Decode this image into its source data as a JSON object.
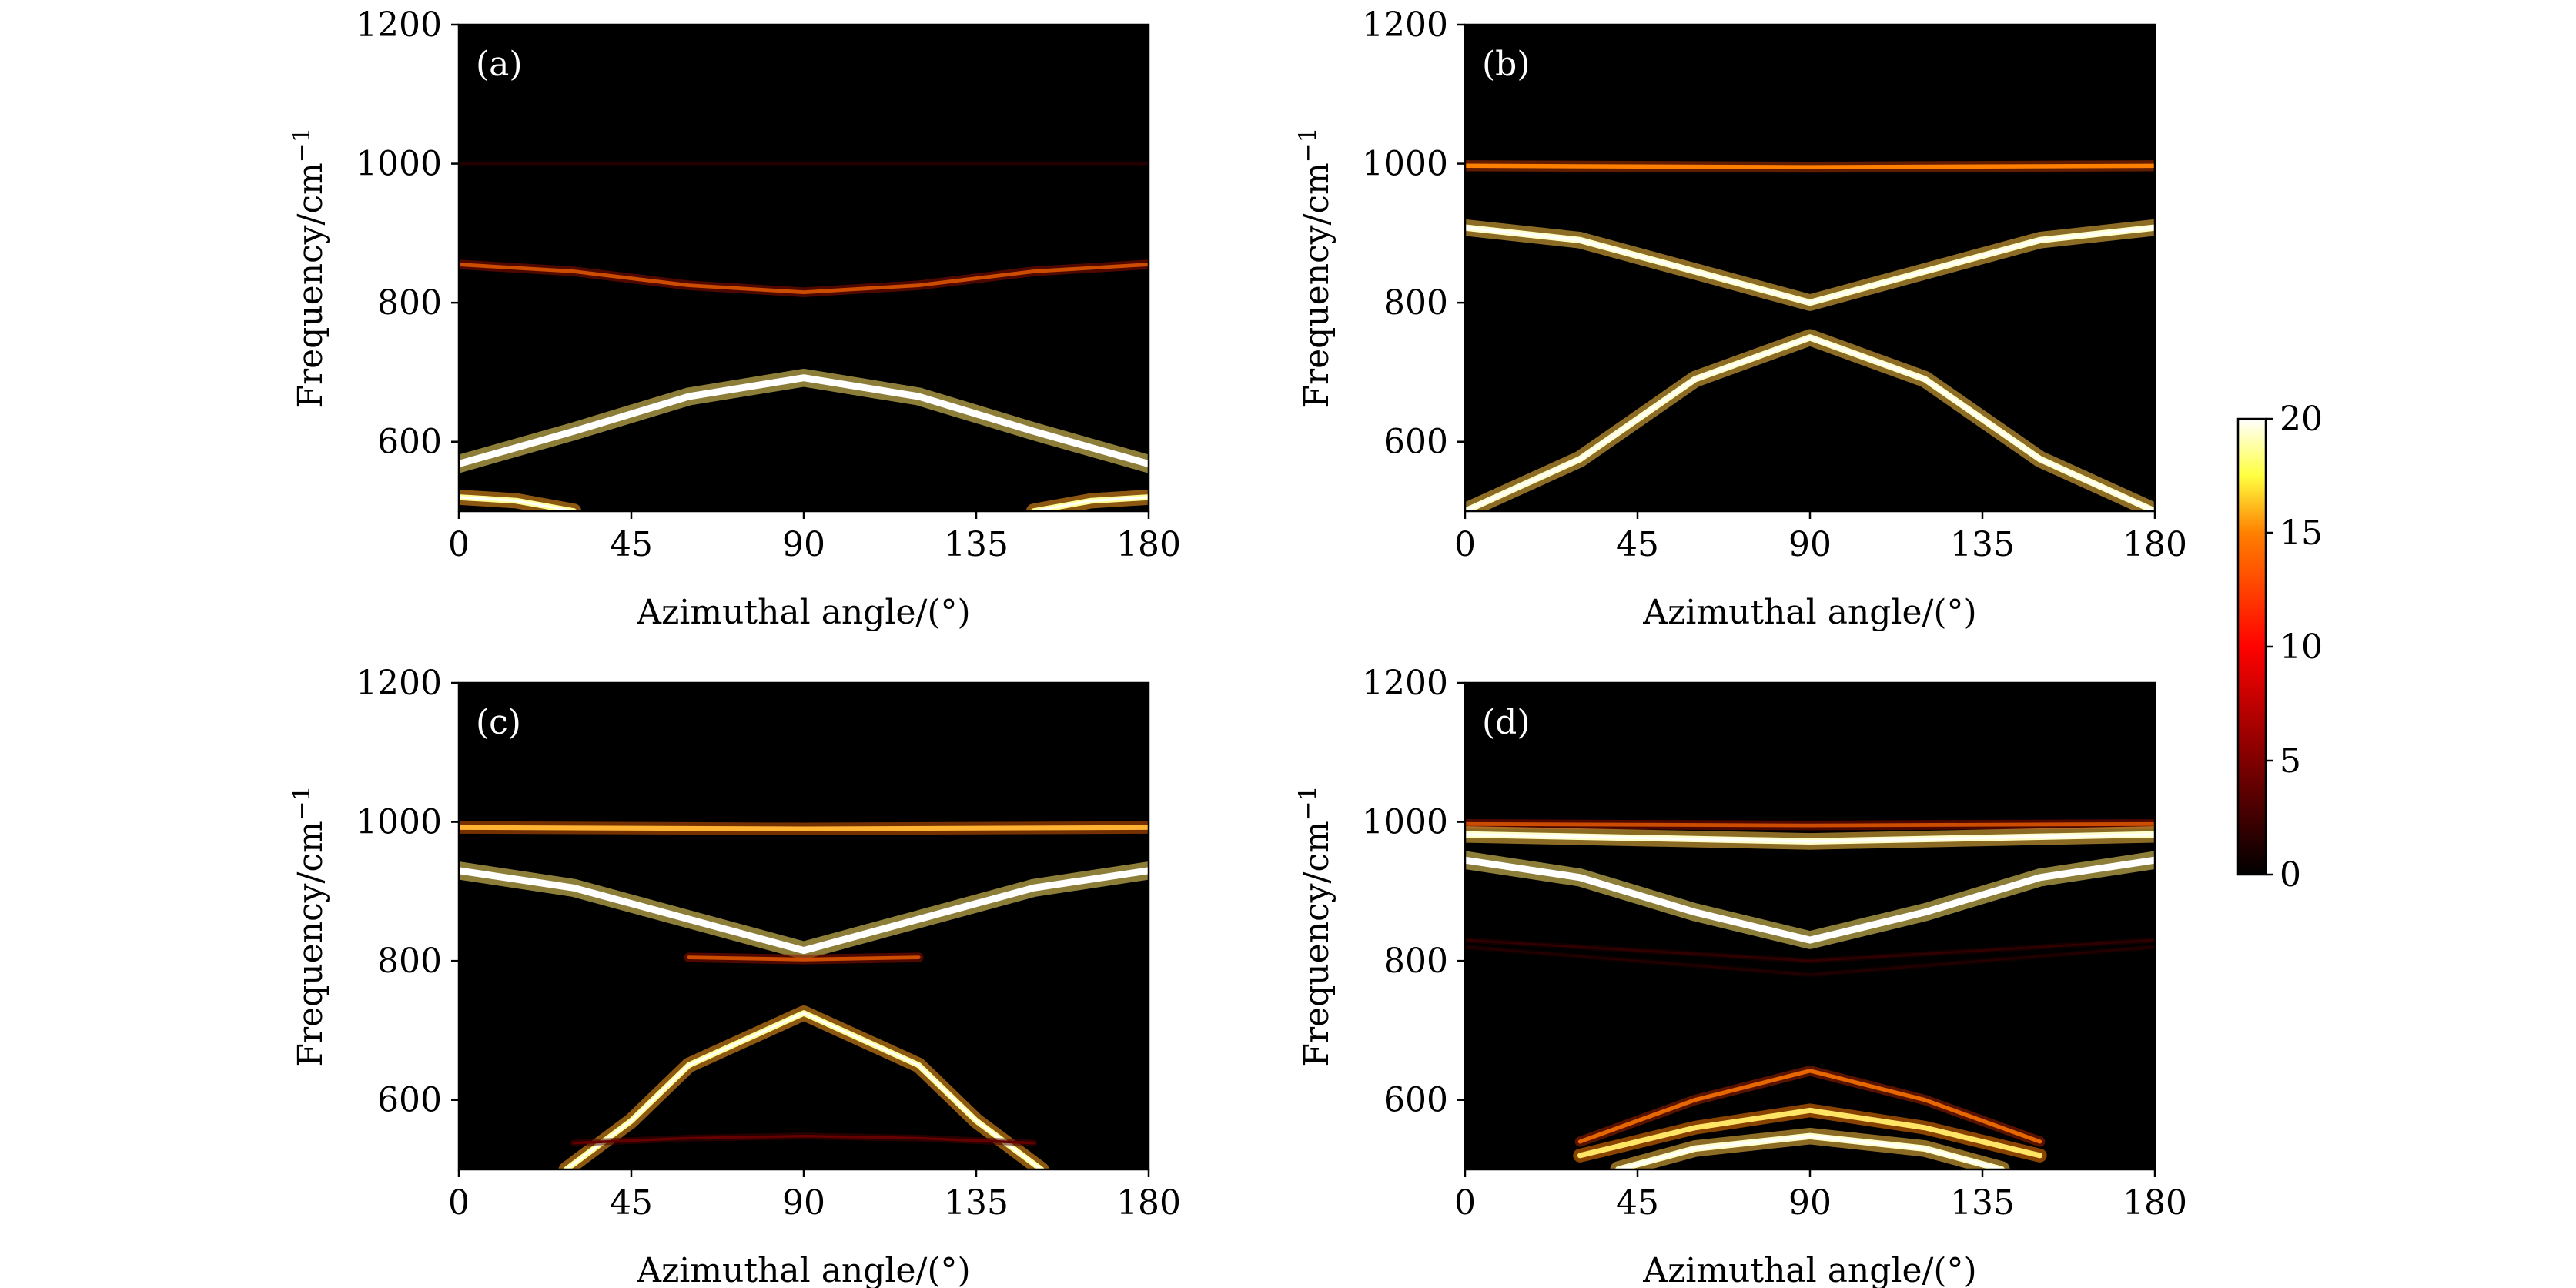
{
  "chart_data": [
    {
      "type": "heatmap",
      "panel_label": "(a)",
      "xlabel": "Azimuthal angle/(°)",
      "ylabel": "Frequency/cm",
      "ylabel_sup": "−1",
      "xlim": [
        0,
        180
      ],
      "ylim": [
        500,
        1200
      ],
      "xticks": [
        0,
        45,
        90,
        135,
        180
      ],
      "yticks": [
        600,
        800,
        1000,
        1200
      ],
      "colormap": "afmhot",
      "bands": [
        {
          "points": [
            [
              0,
              1000
            ],
            [
              90,
              1000
            ],
            [
              180,
              1000
            ]
          ],
          "intensity": 1.5
        },
        {
          "points": [
            [
              0,
              855
            ],
            [
              30,
              845
            ],
            [
              60,
              825
            ],
            [
              90,
              815
            ],
            [
              120,
              825
            ],
            [
              150,
              845
            ],
            [
              180,
              855
            ]
          ],
          "intensity": 8
        },
        {
          "points": [
            [
              0,
              568
            ],
            [
              30,
              615
            ],
            [
              60,
              665
            ],
            [
              90,
              692
            ],
            [
              120,
              665
            ],
            [
              150,
              615
            ],
            [
              180,
              568
            ]
          ],
          "intensity": 20
        },
        {
          "points": [
            [
              0,
              520
            ],
            [
              15,
              515
            ],
            [
              30,
              500
            ]
          ],
          "intensity": 16
        },
        {
          "points": [
            [
              150,
              500
            ],
            [
              165,
              515
            ],
            [
              180,
              520
            ]
          ],
          "intensity": 16
        }
      ]
    },
    {
      "type": "heatmap",
      "panel_label": "(b)",
      "xlabel": "Azimuthal angle/(°)",
      "ylabel": "Frequency/cm",
      "ylabel_sup": "−1",
      "xlim": [
        0,
        180
      ],
      "ylim": [
        500,
        1200
      ],
      "xticks": [
        0,
        45,
        90,
        135,
        180
      ],
      "yticks": [
        600,
        800,
        1000,
        1200
      ],
      "colormap": "afmhot",
      "bands": [
        {
          "points": [
            [
              0,
              997
            ],
            [
              90,
              995
            ],
            [
              180,
              997
            ]
          ],
          "intensity": 10
        },
        {
          "points": [
            [
              0,
              908
            ],
            [
              30,
              890
            ],
            [
              60,
              845
            ],
            [
              90,
              800
            ],
            [
              120,
              845
            ],
            [
              150,
              890
            ],
            [
              180,
              908
            ]
          ],
          "intensity": 18
        },
        {
          "points": [
            [
              0,
              500
            ],
            [
              30,
              575
            ],
            [
              60,
              690
            ],
            [
              90,
              750
            ],
            [
              120,
              690
            ],
            [
              150,
              575
            ],
            [
              180,
              500
            ]
          ],
          "intensity": 18
        }
      ]
    },
    {
      "type": "heatmap",
      "panel_label": "(c)",
      "xlabel": "Azimuthal angle/(°)",
      "ylabel": "Frequency/cm",
      "ylabel_sup": "−1",
      "xlim": [
        0,
        180
      ],
      "ylim": [
        500,
        1200
      ],
      "xticks": [
        0,
        45,
        90,
        135,
        180
      ],
      "yticks": [
        600,
        800,
        1000,
        1200
      ],
      "colormap": "afmhot",
      "bands": [
        {
          "points": [
            [
              0,
              992
            ],
            [
              90,
              990
            ],
            [
              180,
              992
            ]
          ],
          "intensity": 12
        },
        {
          "points": [
            [
              0,
              930
            ],
            [
              30,
              905
            ],
            [
              60,
              860
            ],
            [
              90,
              815
            ],
            [
              120,
              860
            ],
            [
              150,
              905
            ],
            [
              180,
              930
            ]
          ],
          "intensity": 20
        },
        {
          "points": [
            [
              60,
              805
            ],
            [
              90,
              802
            ],
            [
              120,
              805
            ]
          ],
          "intensity": 8
        },
        {
          "points": [
            [
              28,
              500
            ],
            [
              45,
              570
            ],
            [
              60,
              650
            ],
            [
              90,
              725
            ],
            [
              120,
              650
            ],
            [
              135,
              570
            ],
            [
              152,
              500
            ]
          ],
          "intensity": 16
        },
        {
          "points": [
            [
              30,
              538
            ],
            [
              60,
              545
            ],
            [
              90,
              548
            ],
            [
              120,
              545
            ],
            [
              150,
              538
            ]
          ],
          "intensity": 4
        }
      ]
    },
    {
      "type": "heatmap",
      "panel_label": "(d)",
      "xlabel": "Azimuthal angle/(°)",
      "ylabel": "Frequency/cm",
      "ylabel_sup": "−1",
      "xlim": [
        0,
        180
      ],
      "ylim": [
        500,
        1200
      ],
      "xticks": [
        0,
        45,
        90,
        135,
        180
      ],
      "yticks": [
        600,
        800,
        1000,
        1200
      ],
      "colormap": "afmhot",
      "bands": [
        {
          "points": [
            [
              0,
              997
            ],
            [
              90,
              995
            ],
            [
              180,
              997
            ]
          ],
          "intensity": 8
        },
        {
          "points": [
            [
              0,
              982
            ],
            [
              90,
              972
            ],
            [
              180,
              982
            ]
          ],
          "intensity": 18
        },
        {
          "points": [
            [
              0,
              945
            ],
            [
              30,
              920
            ],
            [
              60,
              870
            ],
            [
              90,
              830
            ],
            [
              120,
              870
            ],
            [
              150,
              920
            ],
            [
              180,
              945
            ]
          ],
          "intensity": 20
        },
        {
          "points": [
            [
              0,
              830
            ],
            [
              90,
              800
            ],
            [
              180,
              830
            ]
          ],
          "intensity": 2
        },
        {
          "points": [
            [
              0,
              820
            ],
            [
              90,
              780
            ],
            [
              180,
              820
            ]
          ],
          "intensity": 1.5
        },
        {
          "points": [
            [
              30,
              540
            ],
            [
              60,
              600
            ],
            [
              90,
              642
            ],
            [
              120,
              600
            ],
            [
              150,
              540
            ]
          ],
          "intensity": 9
        },
        {
          "points": [
            [
              30,
              520
            ],
            [
              60,
              560
            ],
            [
              90,
              585
            ],
            [
              120,
              560
            ],
            [
              150,
              520
            ]
          ],
          "intensity": 14
        },
        {
          "points": [
            [
              40,
              500
            ],
            [
              60,
              530
            ],
            [
              90,
              548
            ],
            [
              120,
              530
            ],
            [
              140,
              500
            ]
          ],
          "intensity": 18
        }
      ]
    }
  ],
  "colorbar": {
    "min": 0,
    "max": 20,
    "ticks": [
      0,
      5,
      10,
      15,
      20
    ]
  }
}
